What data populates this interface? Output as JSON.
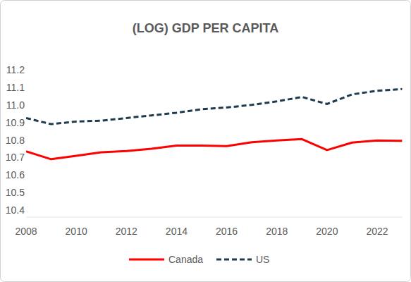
{
  "chart_data": {
    "type": "line",
    "title": "(LOG) GDP PER CAPITA",
    "x": [
      2008,
      2009,
      2010,
      2011,
      2012,
      2013,
      2014,
      2015,
      2016,
      2017,
      2018,
      2019,
      2020,
      2021,
      2022,
      2023
    ],
    "series": [
      {
        "name": "Canada",
        "color": "#ff0000",
        "line_style": "solid",
        "values": [
          10.735,
          10.69,
          10.71,
          10.73,
          10.737,
          10.75,
          10.768,
          10.768,
          10.765,
          10.787,
          10.797,
          10.805,
          10.742,
          10.785,
          10.797,
          10.795
        ]
      },
      {
        "name": "US",
        "color": "#1f3c4f",
        "line_style": "dashed",
        "values": [
          10.925,
          10.89,
          10.905,
          10.91,
          10.925,
          10.94,
          10.955,
          10.975,
          10.985,
          11.0,
          11.02,
          11.045,
          11.005,
          11.06,
          11.08,
          11.09
        ]
      }
    ],
    "xlim": [
      2008,
      2023
    ],
    "xticks": [
      2008,
      2010,
      2012,
      2014,
      2016,
      2018,
      2020,
      2022
    ],
    "ylim": [
      10.4,
      11.2
    ],
    "yticks": [
      10.4,
      10.5,
      10.6,
      10.7,
      10.8,
      10.9,
      {
        "value": 11,
        "label": "11.0"
      },
      11.1,
      11.2
    ],
    "grid": false,
    "legend": "bottom"
  }
}
